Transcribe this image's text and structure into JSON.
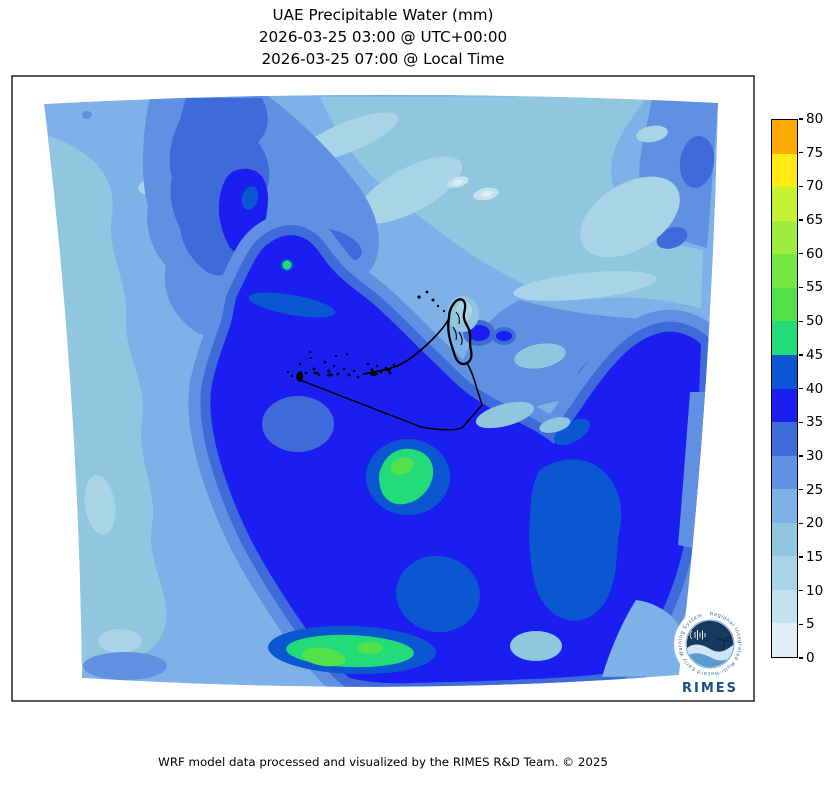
{
  "title": {
    "line1": "UAE Precipitable Water (mm)",
    "line2": "2026-03-25 03:00 @ UTC+00:00",
    "line3": "2026-03-25 07:00 @ Local Time"
  },
  "footer": {
    "text": "WRF model data processed and visualized by the RIMES R&D Team. © 2025"
  },
  "colorbar": {
    "min": 0,
    "max": 80,
    "step": 5,
    "ticks": [
      0,
      5,
      10,
      15,
      20,
      25,
      30,
      35,
      40,
      45,
      50,
      55,
      60,
      65,
      70,
      75,
      80
    ],
    "colors": [
      "#dfeef6",
      "#c4e1ef",
      "#a9d4e8",
      "#90c6e0",
      "#7eb1e8",
      "#5f90e2",
      "#3f6ad9",
      "#1a1ef0",
      "#0b57d2",
      "#22dc7a",
      "#52e14b",
      "#74e741",
      "#9eec3c",
      "#c6f233",
      "#ffe913",
      "#ffaa00"
    ],
    "outline_color": "#000000"
  },
  "logo": {
    "text": "RIMES",
    "ring_text": "Regional Integrated Multi-Hazard Early Warning System",
    "navy": "#16395f",
    "mid_blue": "#5b9bd0",
    "light_blue": "#cfe6f5",
    "text_color": "#1b4f8a",
    "ring_text_color": "#2e6da4"
  },
  "chart_data": {
    "type": "filled_contour_map",
    "title": "UAE Precipitable Water (mm)",
    "variable": "precipitable water",
    "units": "mm",
    "levels_mm": [
      0,
      5,
      10,
      15,
      20,
      25,
      30,
      35,
      40,
      45,
      50,
      55,
      60,
      65,
      70,
      75,
      80
    ],
    "colorbar_colors": [
      "#dfeef6",
      "#c4e1ef",
      "#a9d4e8",
      "#90c6e0",
      "#7eb1e8",
      "#5f90e2",
      "#3f6ad9",
      "#1a1ef0",
      "#0b57d2",
      "#22dc7a",
      "#52e14b",
      "#74e741",
      "#9eec3c",
      "#c6f233",
      "#ffe913",
      "#ffaa00"
    ],
    "value_range_depicted_mm": [
      5,
      55
    ],
    "legend_position": "right",
    "notable_regions": [
      {
        "location": "center and south of domain (UAE interior)",
        "value_mm": "35-40"
      },
      {
        "location": "west and northwest edge",
        "value_mm": "15-25"
      },
      {
        "location": "northeast sector (Gulf of Oman side)",
        "value_mm": "10-20 with pockets of 5-10"
      },
      {
        "location": "pocket north of UAE coast (upper middle)",
        "value_mm": "35-45"
      },
      {
        "location": "local maxima south-center and along bottom",
        "value_mm": "45-55"
      },
      {
        "location": "right edge mid-height band",
        "value_mm": "35-40"
      }
    ],
    "overlays": [
      "UAE coastline, islands and borders drawn in black"
    ]
  }
}
